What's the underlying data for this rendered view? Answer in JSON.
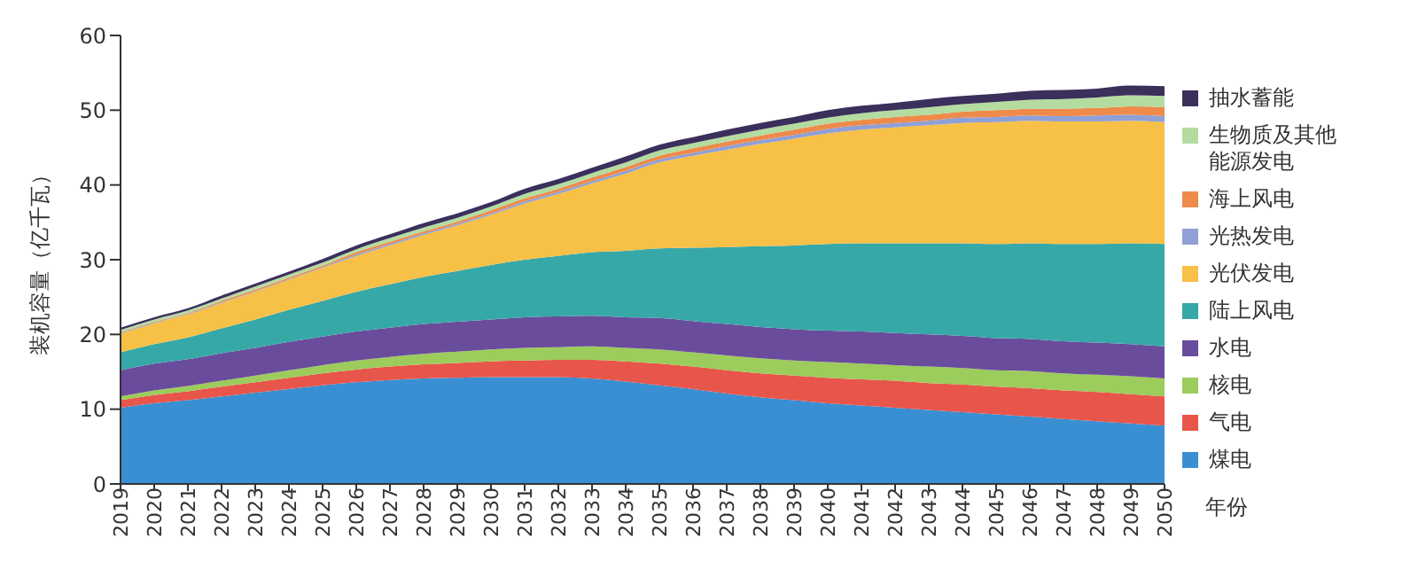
{
  "chart_data": {
    "type": "area",
    "stacked": true,
    "ylabel": "装机容量（亿千瓦）",
    "xlabel": "年份",
    "legend": "right",
    "grid": false,
    "categories": [
      "2019",
      "2020",
      "2021",
      "2022",
      "2023",
      "2024",
      "2025",
      "2026",
      "2027",
      "2028",
      "2029",
      "2030",
      "2031",
      "2032",
      "2033",
      "2034",
      "2035",
      "2036",
      "2037",
      "2038",
      "2039",
      "2040",
      "2041",
      "2042",
      "2043",
      "2044",
      "2045",
      "2046",
      "2047",
      "2048",
      "2049",
      "2050"
    ],
    "ylim": [
      0,
      60
    ],
    "yticks": [
      0,
      10,
      20,
      30,
      40,
      50,
      60
    ],
    "series": [
      {
        "name": "煤电",
        "color": "#3a8fd3",
        "values": [
          10.2,
          10.8,
          11.2,
          11.7,
          12.2,
          12.7,
          13.2,
          13.6,
          13.9,
          14.1,
          14.2,
          14.3,
          14.3,
          14.3,
          14.1,
          13.7,
          13.2,
          12.7,
          12.1,
          11.6,
          11.2,
          10.8,
          10.5,
          10.2,
          9.9,
          9.6,
          9.3,
          9.0,
          8.7,
          8.4,
          8.1,
          7.8
        ]
      },
      {
        "name": "气电",
        "color": "#e8554a",
        "values": [
          1.0,
          1.1,
          1.2,
          1.3,
          1.4,
          1.5,
          1.6,
          1.7,
          1.8,
          1.9,
          2.0,
          2.1,
          2.2,
          2.3,
          2.5,
          2.7,
          2.9,
          3.0,
          3.1,
          3.2,
          3.3,
          3.4,
          3.5,
          3.6,
          3.6,
          3.7,
          3.7,
          3.8,
          3.8,
          3.9,
          3.9,
          3.9
        ]
      },
      {
        "name": "核电",
        "color": "#9ccc5c",
        "values": [
          0.5,
          0.6,
          0.7,
          0.8,
          0.9,
          1.0,
          1.1,
          1.2,
          1.3,
          1.4,
          1.5,
          1.6,
          1.7,
          1.7,
          1.8,
          1.8,
          1.9,
          1.9,
          2.0,
          2.0,
          2.0,
          2.1,
          2.1,
          2.1,
          2.2,
          2.2,
          2.2,
          2.3,
          2.3,
          2.3,
          2.4,
          2.4
        ]
      },
      {
        "name": "水电",
        "color": "#6a4c9c",
        "values": [
          3.5,
          3.6,
          3.6,
          3.7,
          3.7,
          3.8,
          3.8,
          3.9,
          3.9,
          4.0,
          4.0,
          4.0,
          4.1,
          4.1,
          4.1,
          4.1,
          4.2,
          4.2,
          4.2,
          4.2,
          4.2,
          4.2,
          4.3,
          4.3,
          4.3,
          4.3,
          4.3,
          4.3,
          4.3,
          4.3,
          4.3,
          4.3
        ]
      },
      {
        "name": "陆上风电",
        "color": "#37a8a8",
        "values": [
          2.4,
          2.6,
          2.9,
          3.3,
          3.8,
          4.3,
          4.8,
          5.3,
          5.8,
          6.3,
          6.8,
          7.3,
          7.7,
          8.1,
          8.5,
          8.9,
          9.3,
          9.8,
          10.3,
          10.8,
          11.2,
          11.6,
          11.8,
          12.0,
          12.2,
          12.4,
          12.6,
          12.8,
          13.0,
          13.2,
          13.5,
          13.7
        ]
      },
      {
        "name": "光伏发电",
        "color": "#f7c046",
        "values": [
          2.5,
          2.8,
          3.1,
          3.4,
          3.7,
          4.0,
          4.4,
          4.8,
          5.2,
          5.6,
          6.1,
          6.7,
          7.5,
          8.3,
          9.2,
          10.3,
          11.5,
          12.3,
          13.0,
          13.7,
          14.3,
          14.8,
          15.2,
          15.5,
          15.8,
          16.1,
          16.3,
          16.4,
          16.4,
          16.4,
          16.4,
          16.3
        ]
      },
      {
        "name": "光热发电",
        "color": "#8fa0d6",
        "values": [
          0.1,
          0.1,
          0.1,
          0.1,
          0.1,
          0.1,
          0.1,
          0.2,
          0.2,
          0.2,
          0.2,
          0.2,
          0.3,
          0.3,
          0.3,
          0.4,
          0.4,
          0.4,
          0.5,
          0.5,
          0.5,
          0.6,
          0.6,
          0.6,
          0.6,
          0.7,
          0.7,
          0.7,
          0.7,
          0.8,
          0.8,
          0.8
        ]
      },
      {
        "name": "海上风电",
        "color": "#ee8a4a",
        "values": [
          0.1,
          0.1,
          0.1,
          0.2,
          0.2,
          0.2,
          0.2,
          0.3,
          0.3,
          0.3,
          0.3,
          0.4,
          0.4,
          0.4,
          0.5,
          0.5,
          0.5,
          0.6,
          0.6,
          0.6,
          0.7,
          0.7,
          0.7,
          0.8,
          0.8,
          0.8,
          0.9,
          0.9,
          1.0,
          1.0,
          1.1,
          1.2
        ]
      },
      {
        "name": "生物质及其他能源发电",
        "color": "#b4dca0",
        "values": [
          0.3,
          0.3,
          0.3,
          0.3,
          0.4,
          0.4,
          0.4,
          0.4,
          0.5,
          0.5,
          0.5,
          0.5,
          0.6,
          0.6,
          0.6,
          0.6,
          0.7,
          0.7,
          0.7,
          0.8,
          0.8,
          0.8,
          0.9,
          0.9,
          1.0,
          1.0,
          1.1,
          1.2,
          1.3,
          1.4,
          1.5,
          1.5
        ]
      },
      {
        "name": "抽水蓄能",
        "color": "#3b2f5c",
        "values": [
          0.3,
          0.3,
          0.3,
          0.4,
          0.4,
          0.4,
          0.5,
          0.5,
          0.5,
          0.6,
          0.6,
          0.6,
          0.7,
          0.7,
          0.7,
          0.8,
          0.8,
          0.8,
          0.9,
          0.9,
          0.9,
          1.0,
          1.0,
          1.0,
          1.1,
          1.1,
          1.1,
          1.2,
          1.2,
          1.2,
          1.3,
          1.3
        ]
      }
    ]
  }
}
